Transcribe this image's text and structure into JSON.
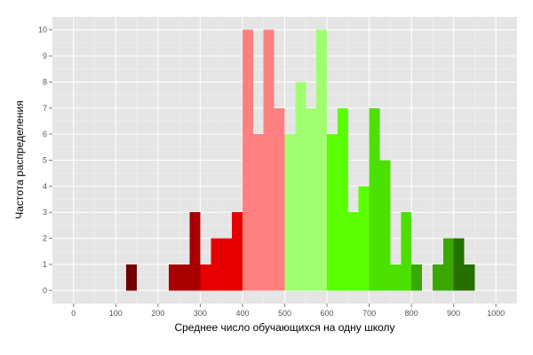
{
  "chart_data": {
    "type": "bar",
    "subtype": "histogram",
    "xlabel": "Среднее число обучающихся на одну школу",
    "ylabel": "Частота распределения",
    "xlim": [
      -50,
      1050
    ],
    "ylim": [
      -0.5,
      10.5
    ],
    "x_ticks": [
      0,
      100,
      200,
      300,
      400,
      500,
      600,
      700,
      800,
      900,
      1000
    ],
    "y_ticks": [
      0,
      1,
      2,
      3,
      4,
      5,
      6,
      7,
      8,
      9,
      10
    ],
    "grid": true,
    "legend": "none",
    "panel_background": "#e5e5e5",
    "bin_width": 25,
    "bins": [
      {
        "x0": 125,
        "x1": 150,
        "count": 1,
        "color": "#700000"
      },
      {
        "x0": 225,
        "x1": 250,
        "count": 1,
        "color": "#a80000"
      },
      {
        "x0": 250,
        "x1": 275,
        "count": 1,
        "color": "#a80000"
      },
      {
        "x0": 275,
        "x1": 300,
        "count": 3,
        "color": "#a80000"
      },
      {
        "x0": 300,
        "x1": 325,
        "count": 1,
        "color": "#e80000"
      },
      {
        "x0": 325,
        "x1": 350,
        "count": 2,
        "color": "#e80000"
      },
      {
        "x0": 350,
        "x1": 375,
        "count": 2,
        "color": "#e80000"
      },
      {
        "x0": 375,
        "x1": 400,
        "count": 3,
        "color": "#e80000"
      },
      {
        "x0": 400,
        "x1": 425,
        "count": 10,
        "color": "#ff8080"
      },
      {
        "x0": 425,
        "x1": 450,
        "count": 6,
        "color": "#ff8080"
      },
      {
        "x0": 450,
        "x1": 475,
        "count": 10,
        "color": "#ff8080"
      },
      {
        "x0": 475,
        "x1": 500,
        "count": 7,
        "color": "#ff8080"
      },
      {
        "x0": 500,
        "x1": 525,
        "count": 6,
        "color": "#a0ff70"
      },
      {
        "x0": 525,
        "x1": 550,
        "count": 8,
        "color": "#a0ff70"
      },
      {
        "x0": 550,
        "x1": 575,
        "count": 7,
        "color": "#a0ff70"
      },
      {
        "x0": 575,
        "x1": 600,
        "count": 10,
        "color": "#a0ff70"
      },
      {
        "x0": 600,
        "x1": 625,
        "count": 6,
        "color": "#5aff00"
      },
      {
        "x0": 625,
        "x1": 650,
        "count": 7,
        "color": "#5aff00"
      },
      {
        "x0": 650,
        "x1": 675,
        "count": 3,
        "color": "#5aff00"
      },
      {
        "x0": 675,
        "x1": 700,
        "count": 4,
        "color": "#5aff00"
      },
      {
        "x0": 700,
        "x1": 725,
        "count": 7,
        "color": "#4ce000"
      },
      {
        "x0": 725,
        "x1": 750,
        "count": 5,
        "color": "#4ce000"
      },
      {
        "x0": 750,
        "x1": 775,
        "count": 1,
        "color": "#4ce000"
      },
      {
        "x0": 775,
        "x1": 800,
        "count": 3,
        "color": "#4ce000"
      },
      {
        "x0": 800,
        "x1": 825,
        "count": 1,
        "color": "#3aa800"
      },
      {
        "x0": 850,
        "x1": 875,
        "count": 1,
        "color": "#3aa800"
      },
      {
        "x0": 875,
        "x1": 900,
        "count": 2,
        "color": "#3aa800"
      },
      {
        "x0": 900,
        "x1": 925,
        "count": 2,
        "color": "#267000"
      },
      {
        "x0": 925,
        "x1": 950,
        "count": 1,
        "color": "#267000"
      }
    ]
  }
}
